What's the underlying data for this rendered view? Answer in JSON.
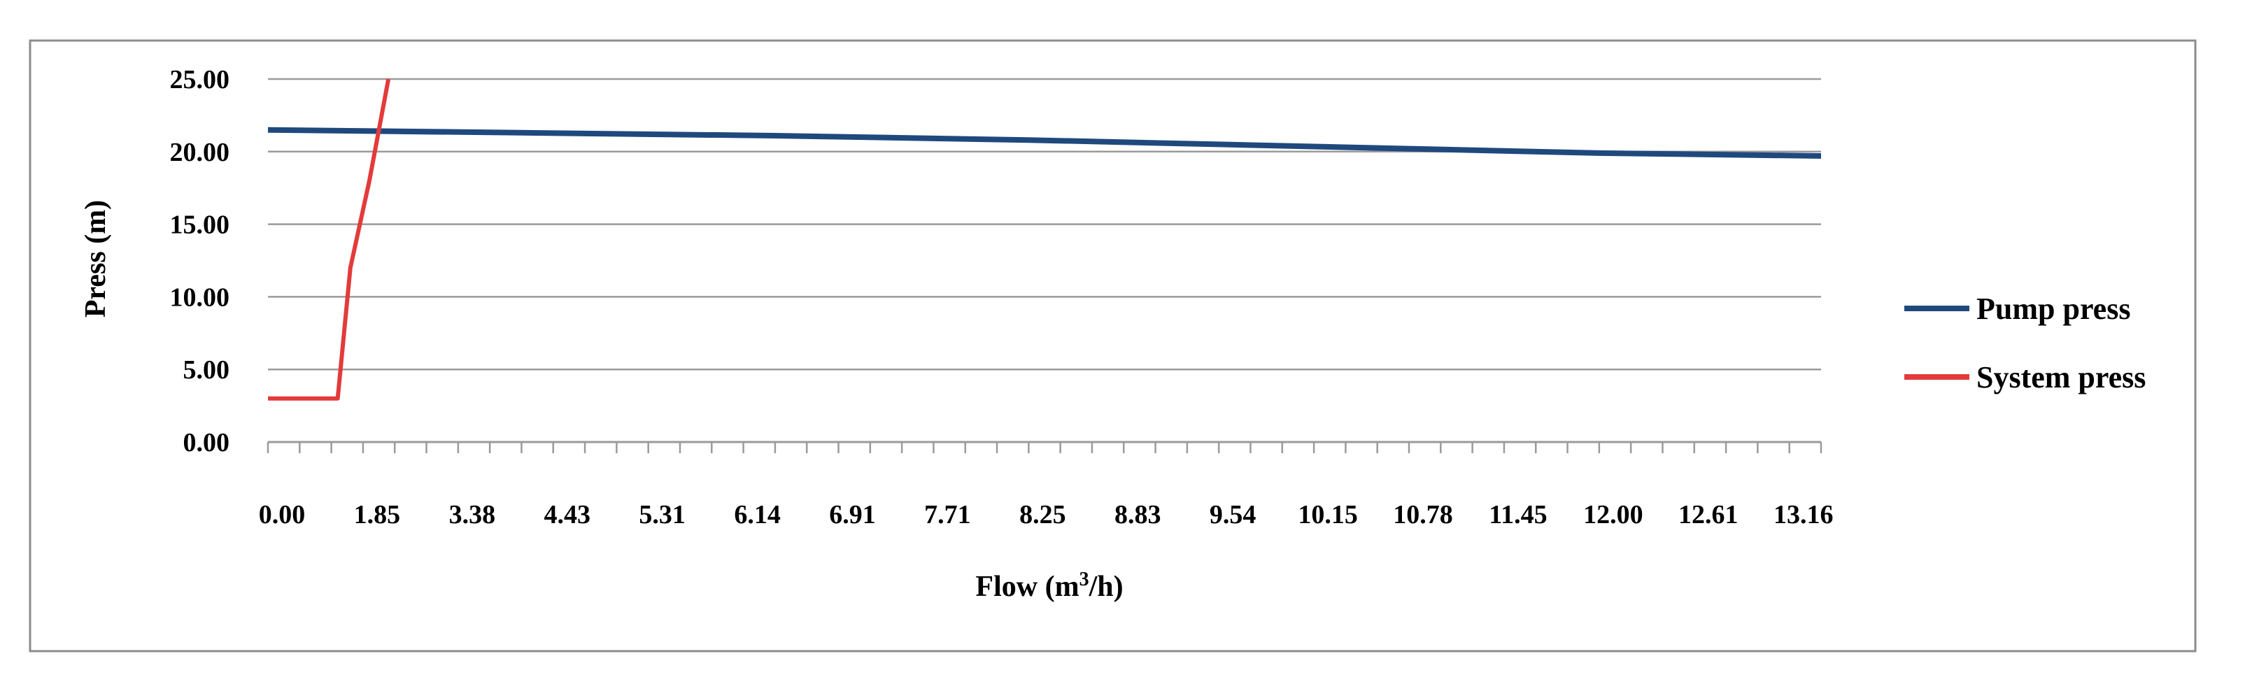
{
  "chart_data": {
    "type": "line",
    "title": "",
    "xlabel": "Flow (m",
    "xlabel_sup": "3",
    "xlabel_tail": "/h)",
    "ylabel": "Press (m)",
    "ylim": [
      0,
      25
    ],
    "yticks": [
      "0.00",
      "5.00",
      "10.00",
      "15.00",
      "20.00",
      "25.00"
    ],
    "grid": "horizontal",
    "legend": "right",
    "x_categories": [
      "0.00",
      "1.85",
      "3.38",
      "4.43",
      "5.31",
      "6.14",
      "6.91",
      "7.71",
      "8.25",
      "8.83",
      "9.54",
      "10.15",
      "10.78",
      "11.45",
      "12.00",
      "12.61",
      "13.16"
    ],
    "category_count": 50,
    "label_every": 3,
    "series": [
      {
        "name": "Pump press",
        "color": "#1f497d",
        "points": [
          [
            0,
            21.5
          ],
          [
            8,
            21.3
          ],
          [
            16,
            21.1
          ],
          [
            24,
            20.8
          ],
          [
            30,
            20.5
          ],
          [
            36,
            20.2
          ],
          [
            42,
            19.9
          ],
          [
            49,
            19.7
          ]
        ]
      },
      {
        "name": "System press",
        "color": "#e33b3b",
        "points": [
          [
            0,
            3.0
          ],
          [
            2.2,
            3.0
          ],
          [
            2.6,
            12.0
          ],
          [
            3.2,
            18.0
          ],
          [
            3.8,
            25.0
          ]
        ]
      }
    ]
  }
}
